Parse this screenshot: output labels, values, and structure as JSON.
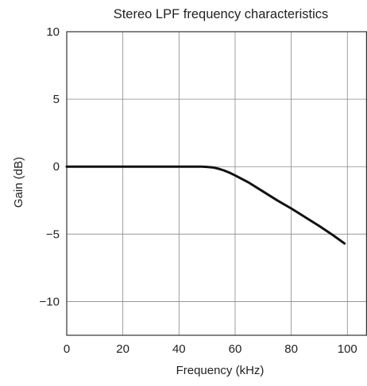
{
  "chart_data": {
    "type": "line",
    "title": "Stereo LPF frequency characteristics",
    "xlabel": "Frequency (kHz)",
    "ylabel": "Gain (dB)",
    "xlim": [
      0,
      107
    ],
    "ylim": [
      -12.5,
      10
    ],
    "xticks": [
      0,
      20,
      40,
      60,
      80,
      100
    ],
    "xtick_labels": [
      "0",
      "20",
      "40",
      "60",
      "80",
      "100"
    ],
    "yticks": [
      10,
      5,
      0,
      -5,
      -10
    ],
    "ytick_labels": [
      "10",
      "5",
      "0",
      "−5",
      "−10"
    ],
    "grid": true,
    "series": [
      {
        "color": "#111111",
        "x": [
          0,
          10,
          20,
          30,
          40,
          45,
          48,
          50,
          52,
          54,
          56,
          58,
          60,
          65,
          70,
          75,
          80,
          85,
          90,
          95,
          99
        ],
        "y": [
          0,
          0,
          0,
          0,
          0,
          0,
          0,
          -0.02,
          -0.06,
          -0.15,
          -0.28,
          -0.45,
          -0.65,
          -1.2,
          -1.85,
          -2.5,
          -3.1,
          -3.75,
          -4.4,
          -5.1,
          -5.7
        ]
      }
    ]
  }
}
